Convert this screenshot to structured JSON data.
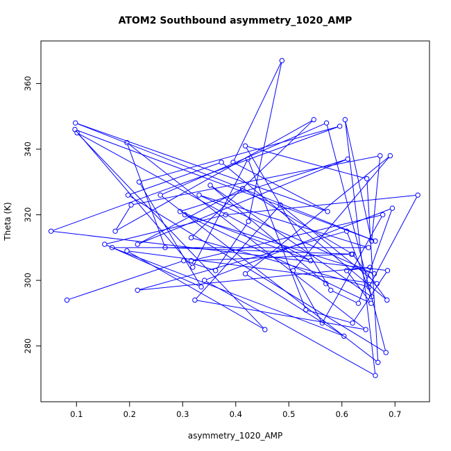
{
  "chart_data": {
    "type": "line",
    "title": "ATOM2 Southbound asymmetry_1020_AMP",
    "xlabel": "asymmetry_1020_AMP",
    "ylabel": "Theta (K)",
    "xlim": [
      0.033,
      0.765
    ],
    "ylim": [
      263,
      373
    ],
    "x_ticks": [
      0.1,
      0.2,
      0.3,
      0.4,
      0.5,
      0.6,
      0.7
    ],
    "y_ticks": [
      280,
      300,
      320,
      340,
      360
    ],
    "x_tick_labels": [
      "0.1",
      "0.2",
      "0.3",
      "0.4",
      "0.5",
      "0.6",
      "0.7"
    ],
    "y_tick_labels": [
      "280",
      "300",
      "320",
      "340",
      "360"
    ],
    "grid": false,
    "legend": "none",
    "series": [
      {
        "color": "#0000ff",
        "marker": "open-circle",
        "x": [
          0.082,
          0.302,
          0.362,
          0.424,
          0.487,
          0.395,
          0.573,
          0.098,
          0.663,
          0.097,
          0.319,
          0.423,
          0.532,
          0.62,
          0.686,
          0.052,
          0.596,
          0.218,
          0.335,
          0.153,
          0.381,
          0.743,
          0.651,
          0.316,
          0.547,
          0.173,
          0.203,
          0.672,
          0.656,
          0.606,
          0.663,
          0.341,
          0.695,
          0.631,
          0.579,
          0.418,
          0.647,
          0.668,
          0.258,
          0.571,
          0.683,
          0.197,
          0.373,
          0.685,
          0.62,
          0.413,
          0.215,
          0.611,
          0.295,
          0.541,
          0.101,
          0.455,
          0.195,
          0.666,
          0.484,
          0.323,
          0.645,
          0.195,
          0.267,
          0.618,
          0.316,
          0.677,
          0.563,
          0.508,
          0.691,
          0.418,
          0.604,
          0.167,
          0.65,
          0.331,
          0.661,
          0.304,
          0.655,
          0.609,
          0.653,
          0.215,
          0.609,
          0.656,
          0.352,
          0.57
        ],
        "y": [
          294,
          306,
          303,
          318,
          367,
          336,
          321,
          348,
          312,
          346,
          304,
          337,
          291,
          287,
          303,
          315,
          347,
          330,
          298,
          311,
          320,
          326,
          298,
          313,
          349,
          315,
          323,
          338,
          312,
          349,
          271,
          300,
          322,
          293,
          297,
          341,
          331,
          275,
          326,
          348,
          278,
          326,
          336,
          294,
          308,
          328,
          311,
          337,
          321,
          306,
          345,
          285,
          309,
          299,
          323,
          294,
          285,
          342,
          310,
          308,
          306,
          320,
          287,
          303,
          338,
          302,
          283,
          310,
          310,
          326,
          302,
          320,
          293,
          303,
          304,
          297,
          315,
          295,
          329,
          299
        ]
      }
    ]
  }
}
